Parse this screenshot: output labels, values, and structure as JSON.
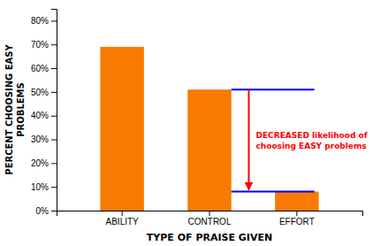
{
  "chart_data": {
    "type": "bar",
    "categories": [
      "ABILITY",
      "CONTROL",
      "EFFORT"
    ],
    "values": [
      0.69,
      0.51,
      0.08
    ],
    "color": "#F97A00",
    "xlabel": "TYPE OF PRAISE GIVEN",
    "ylabel": "PERCENT CHOOSING EASY\nPROBLEMS",
    "ylim": [
      0,
      0.85
    ],
    "yticks": [
      {
        "value": 0.0,
        "label": "0%"
      },
      {
        "value": 0.1,
        "label": "10%"
      },
      {
        "value": 0.2,
        "label": "20%"
      },
      {
        "value": 0.3,
        "label": "30%"
      },
      {
        "value": 0.4,
        "label": "40%"
      },
      {
        "value": 0.5,
        "label": "50%"
      },
      {
        "value": 0.6,
        "label": "60%"
      },
      {
        "value": 0.7,
        "label": "70%"
      },
      {
        "value": 0.8,
        "label": "80%"
      }
    ],
    "grid": false,
    "annotation": {
      "text": "DECREASED likelihood of\nchoosing EASY problems",
      "color": "#FF0000",
      "from": 0.51,
      "to": 0.08,
      "line_color": "#0000FF"
    }
  }
}
